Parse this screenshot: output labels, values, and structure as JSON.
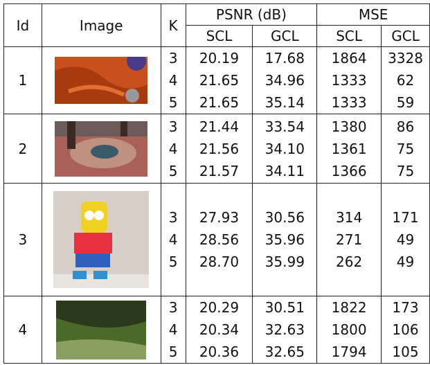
{
  "table": {
    "headers": {
      "id": "Id",
      "image": "Image",
      "k": "K",
      "psnr": "PSNR (dB)",
      "mse": "MSE",
      "sub": [
        "SCL",
        "GCL",
        "SCL",
        "GCL"
      ]
    },
    "groups": [
      {
        "id": "1",
        "rows": [
          [
            "3",
            "20.19",
            "17.68",
            "1864",
            "3328"
          ],
          [
            "4",
            "21.65",
            "34.96",
            "1333",
            "62"
          ],
          [
            "5",
            "21.65",
            "35.14",
            "1333",
            "59"
          ]
        ]
      },
      {
        "id": "2",
        "rows": [
          [
            "3",
            "21.44",
            "33.54",
            "1380",
            "86"
          ],
          [
            "4",
            "21.56",
            "34.10",
            "1361",
            "75"
          ],
          [
            "5",
            "21.57",
            "34.11",
            "1366",
            "75"
          ]
        ]
      },
      {
        "id": "3",
        "rows": [
          [
            "3",
            "27.93",
            "30.56",
            "314",
            "171"
          ],
          [
            "4",
            "28.56",
            "35.96",
            "271",
            "49"
          ],
          [
            "5",
            "28.70",
            "35.99",
            "262",
            "49"
          ]
        ]
      },
      {
        "id": "4",
        "rows": [
          [
            "3",
            "20.29",
            "30.51",
            "1822",
            "173"
          ],
          [
            "4",
            "20.34",
            "32.63",
            "1800",
            "106"
          ],
          [
            "5",
            "20.36",
            "32.65",
            "1794",
            "105"
          ]
        ]
      }
    ]
  }
}
